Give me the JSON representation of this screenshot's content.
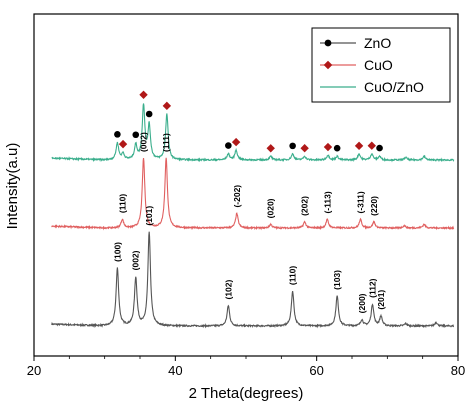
{
  "chart_data": {
    "type": "line",
    "title": "",
    "xlabel": "2 Theta(degrees)",
    "ylabel": "Intensity(a.u)",
    "xlim": [
      20,
      80
    ],
    "xticks": [
      20,
      40,
      60,
      80
    ],
    "y_tick_labels_shown": false,
    "grid": false,
    "legend_position": "top-right",
    "series": [
      {
        "name": "ZnO",
        "color": "#555555",
        "marker": "circle",
        "baseline": 0.0,
        "peaks": [
          {
            "x": 31.8,
            "h": 0.48,
            "label": "(100)"
          },
          {
            "x": 34.4,
            "h": 0.4,
            "label": "(002)"
          },
          {
            "x": 36.3,
            "h": 0.78,
            "label": "(101)"
          },
          {
            "x": 47.5,
            "h": 0.17,
            "label": "(102)"
          },
          {
            "x": 56.6,
            "h": 0.29,
            "label": "(110)"
          },
          {
            "x": 62.9,
            "h": 0.25,
            "label": "(103)"
          },
          {
            "x": 66.4,
            "h": 0.05,
            "label": "(200)"
          },
          {
            "x": 67.9,
            "h": 0.18,
            "label": "(112)"
          },
          {
            "x": 69.1,
            "h": 0.08,
            "label": "(201)"
          },
          {
            "x": 72.6,
            "h": 0.02,
            "label": ""
          },
          {
            "x": 76.9,
            "h": 0.03,
            "label": ""
          }
        ]
      },
      {
        "name": "CuO",
        "color": "#e06060",
        "marker": "diamond",
        "baseline": 1.0,
        "peaks": [
          {
            "x": 32.5,
            "h": 0.07,
            "label": "(110)"
          },
          {
            "x": 35.5,
            "h": 0.58,
            "label": "(002)"
          },
          {
            "x": 38.7,
            "h": 0.58,
            "label": "(111)"
          },
          {
            "x": 48.7,
            "h": 0.12,
            "label": "(-202)"
          },
          {
            "x": 53.5,
            "h": 0.03,
            "label": "(020)"
          },
          {
            "x": 58.3,
            "h": 0.05,
            "label": "(202)"
          },
          {
            "x": 61.5,
            "h": 0.07,
            "label": "(-113)"
          },
          {
            "x": 66.2,
            "h": 0.07,
            "label": "(-311)"
          },
          {
            "x": 68.1,
            "h": 0.05,
            "label": "(220)"
          },
          {
            "x": 72.4,
            "h": 0.02,
            "label": ""
          },
          {
            "x": 75.2,
            "h": 0.03,
            "label": ""
          }
        ]
      },
      {
        "name": "CuO/ZnO",
        "color": "#3aae8c",
        "marker": "",
        "baseline": 1.78,
        "peaks": [
          {
            "x": 31.8,
            "h": 0.14,
            "marker": "circle"
          },
          {
            "x": 32.6,
            "h": 0.05,
            "marker": "diamond"
          },
          {
            "x": 34.4,
            "h": 0.12,
            "marker": "circle"
          },
          {
            "x": 35.5,
            "h": 0.45,
            "marker": "diamond"
          },
          {
            "x": 36.3,
            "h": 0.28,
            "marker": "circle"
          },
          {
            "x": 38.8,
            "h": 0.38,
            "marker": "diamond"
          },
          {
            "x": 47.5,
            "h": 0.05,
            "marker": "circle"
          },
          {
            "x": 48.6,
            "h": 0.08,
            "marker": "diamond"
          },
          {
            "x": 53.5,
            "h": 0.03,
            "marker": "diamond"
          },
          {
            "x": 56.6,
            "h": 0.05,
            "marker": "circle"
          },
          {
            "x": 58.3,
            "h": 0.03,
            "marker": "diamond"
          },
          {
            "x": 61.6,
            "h": 0.04,
            "marker": "diamond"
          },
          {
            "x": 62.9,
            "h": 0.03,
            "marker": "circle"
          },
          {
            "x": 66.0,
            "h": 0.05,
            "marker": "diamond"
          },
          {
            "x": 67.8,
            "h": 0.05,
            "marker": "diamond"
          },
          {
            "x": 68.9,
            "h": 0.03,
            "marker": "circle"
          },
          {
            "x": 72.6,
            "h": 0.02,
            "marker": ""
          },
          {
            "x": 75.2,
            "h": 0.03,
            "marker": ""
          }
        ]
      }
    ],
    "legend": [
      {
        "label": "ZnO",
        "color": "#555555",
        "marker": "circle",
        "marker_color": "#000000"
      },
      {
        "label": "CuO",
        "color": "#e06060",
        "marker": "diamond",
        "marker_color": "#b01818"
      },
      {
        "label": "CuO/ZnO",
        "color": "#3aae8c",
        "marker": "",
        "marker_color": ""
      }
    ],
    "marker_colors": {
      "circle": "#000000",
      "diamond": "#b01818"
    }
  }
}
